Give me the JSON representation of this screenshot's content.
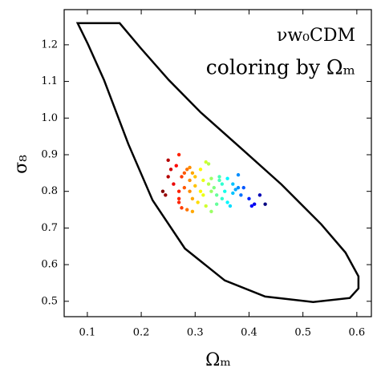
{
  "chart_data": {
    "type": "scatter",
    "title": "νw₀CDM",
    "subtitle": "coloring by Ωₘ",
    "x_label": "Ωₘ",
    "y_label": "σ₈",
    "xlim": [
      0.057,
      0.627
    ],
    "ylim": [
      0.458,
      1.296
    ],
    "xticks": [
      0.1,
      0.2,
      0.3,
      0.4,
      0.5,
      0.6
    ],
    "yticks": [
      0.5,
      0.6,
      0.7,
      0.8,
      0.9,
      {
        "value": 1,
        "label": "1.0"
      },
      1.1,
      1.2
    ],
    "colormap": "jet_r",
    "contour": {
      "color": "#000000",
      "x": [
        0.082,
        0.16,
        0.199,
        0.251,
        0.31,
        0.385,
        0.46,
        0.534,
        0.579,
        0.603,
        0.603,
        0.587,
        0.519,
        0.43,
        0.355,
        0.281,
        0.221,
        0.176,
        0.131,
        0.101
      ],
      "y": [
        1.259,
        1.259,
        1.191,
        1.104,
        1.016,
        0.918,
        0.819,
        0.71,
        0.633,
        0.568,
        0.535,
        0.509,
        0.498,
        0.513,
        0.557,
        0.644,
        0.776,
        0.929,
        1.104,
        1.202
      ]
    },
    "x": [
      0.24,
      0.245,
      0.25,
      0.25,
      0.255,
      0.26,
      0.265,
      0.27,
      0.27,
      0.27,
      0.27,
      0.275,
      0.275,
      0.28,
      0.28,
      0.285,
      0.285,
      0.29,
      0.29,
      0.29,
      0.295,
      0.295,
      0.295,
      0.3,
      0.3,
      0.305,
      0.31,
      0.31,
      0.315,
      0.315,
      0.32,
      0.32,
      0.325,
      0.325,
      0.33,
      0.33,
      0.33,
      0.335,
      0.34,
      0.34,
      0.345,
      0.345,
      0.35,
      0.35,
      0.355,
      0.36,
      0.36,
      0.365,
      0.37,
      0.37,
      0.375,
      0.38,
      0.38,
      0.385,
      0.39,
      0.4,
      0.405,
      0.41,
      0.42,
      0.43
    ],
    "y": [
      0.8,
      0.79,
      0.885,
      0.84,
      0.86,
      0.82,
      0.87,
      0.9,
      0.8,
      0.78,
      0.77,
      0.755,
      0.84,
      0.85,
      0.81,
      0.86,
      0.75,
      0.83,
      0.8,
      0.865,
      0.85,
      0.78,
      0.745,
      0.84,
      0.815,
      0.77,
      0.8,
      0.86,
      0.79,
      0.83,
      0.88,
      0.76,
      0.875,
      0.82,
      0.835,
      0.8,
      0.745,
      0.81,
      0.79,
      0.765,
      0.83,
      0.84,
      0.78,
      0.82,
      0.8,
      0.835,
      0.77,
      0.76,
      0.82,
      0.795,
      0.805,
      0.81,
      0.845,
      0.79,
      0.81,
      0.78,
      0.76,
      0.765,
      0.79,
      0.765
    ]
  }
}
